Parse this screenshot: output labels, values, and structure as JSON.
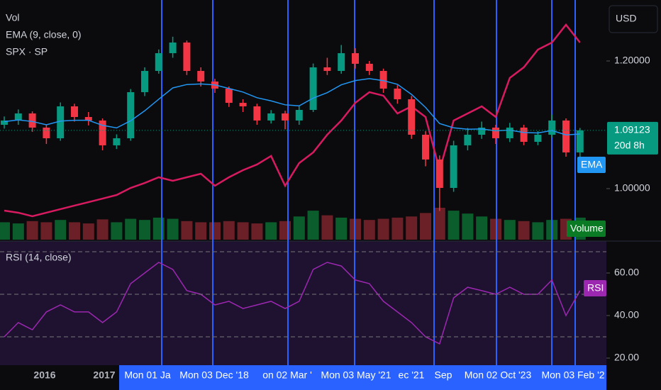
{
  "chart_data": {
    "type": "candlestick",
    "legend": [
      "Vol",
      "EMA (9, close, 0)",
      "SPX · SP"
    ],
    "currency": "USD",
    "last_price_label": "1.09123",
    "countdown": "20d 8h",
    "up_color": "#089981",
    "down_color": "#f23645",
    "ylim": [
      0.92,
      1.2933
    ],
    "yticks": [
      {
        "value": 1.2,
        "label": "1.20000"
      },
      {
        "value": 1.0,
        "label": "1.00000"
      }
    ],
    "ohlc": [
      [
        1.1,
        1.113,
        1.094,
        1.1067
      ],
      [
        1.1067,
        1.124,
        1.1,
        1.1178
      ],
      [
        1.1178,
        1.121,
        1.089,
        1.0956
      ],
      [
        1.0956,
        1.1,
        1.07,
        1.0789
      ],
      [
        1.0789,
        1.135,
        1.075,
        1.1289
      ],
      [
        1.1289,
        1.133,
        1.105,
        1.1122
      ],
      [
        1.1122,
        1.12,
        1.099,
        1.1067
      ],
      [
        1.1067,
        1.11,
        1.06,
        1.0678
      ],
      [
        1.0678,
        1.085,
        1.062,
        1.0789
      ],
      [
        1.0789,
        1.156,
        1.075,
        1.1511
      ],
      [
        1.1511,
        1.19,
        1.145,
        1.1844
      ],
      [
        1.1844,
        1.218,
        1.18,
        1.2122
      ],
      [
        1.2122,
        1.238,
        1.205,
        1.2289
      ],
      [
        1.2289,
        1.232,
        1.178,
        1.1844
      ],
      [
        1.1844,
        1.19,
        1.16,
        1.1678
      ],
      [
        1.1678,
        1.172,
        1.15,
        1.1567
      ],
      [
        1.1567,
        1.16,
        1.128,
        1.1344
      ],
      [
        1.1344,
        1.14,
        1.12,
        1.1289
      ],
      [
        1.1289,
        1.133,
        1.1,
        1.1067
      ],
      [
        1.1067,
        1.123,
        1.102,
        1.1178
      ],
      [
        1.1178,
        1.122,
        1.093,
        1.1067
      ],
      [
        1.1067,
        1.129,
        1.1,
        1.1233
      ],
      [
        1.1233,
        1.196,
        1.12,
        1.19
      ],
      [
        1.19,
        1.205,
        1.178,
        1.1844
      ],
      [
        1.1844,
        1.225,
        1.18,
        1.2122
      ],
      [
        1.2122,
        1.22,
        1.188,
        1.1956
      ],
      [
        1.1956,
        1.2,
        1.178,
        1.1844
      ],
      [
        1.1844,
        1.188,
        1.15,
        1.1567
      ],
      [
        1.1567,
        1.162,
        1.133,
        1.14
      ],
      [
        1.14,
        1.145,
        1.078,
        1.0844
      ],
      [
        1.0844,
        1.09,
        1.035,
        1.0456
      ],
      [
        1.0456,
        1.052,
        0.965,
        1.0011
      ],
      [
        1.0011,
        1.075,
        0.995,
        1.0678
      ],
      [
        1.0678,
        1.095,
        1.06,
        1.0844
      ],
      [
        1.0844,
        1.105,
        1.078,
        1.0956
      ],
      [
        1.0956,
        1.1,
        1.07,
        1.0789
      ],
      [
        1.0789,
        1.103,
        1.073,
        1.0956
      ],
      [
        1.0956,
        1.1,
        1.068,
        1.0733
      ],
      [
        1.0733,
        1.09,
        1.068,
        1.0844
      ],
      [
        1.0844,
        1.116,
        1.08,
        1.1067
      ],
      [
        1.1067,
        1.11,
        1.05,
        1.0567
      ],
      [
        1.0567,
        1.095,
        1.048,
        1.0912
      ]
    ],
    "ema": {
      "name": "EMA",
      "color": "#2196f3",
      "values": [
        1.105,
        1.1076,
        1.1052,
        1.1,
        1.1058,
        1.1071,
        1.107,
        1.0991,
        1.0951,
        1.1063,
        1.1219,
        1.14,
        1.1578,
        1.1631,
        1.164,
        1.1625,
        1.1569,
        1.1513,
        1.1424,
        1.1375,
        1.1313,
        1.1297,
        1.1418,
        1.1503,
        1.1627,
        1.1693,
        1.1723,
        1.1692,
        1.1634,
        1.1476,
        1.1272,
        1.102,
        1.0952,
        1.093,
        1.0935,
        1.0906,
        1.0916,
        1.0879,
        1.0872,
        1.0911,
        1.0842,
        1.0856
      ]
    },
    "volume": {
      "name": "Volume",
      "values": [
        30,
        28,
        32,
        30,
        34,
        30,
        28,
        35,
        30,
        36,
        34,
        38,
        36,
        32,
        30,
        30,
        32,
        30,
        28,
        30,
        32,
        40,
        50,
        42,
        38,
        36,
        34,
        36,
        38,
        40,
        46,
        55,
        50,
        45,
        40,
        36,
        34,
        32,
        30,
        34,
        36,
        38
      ]
    },
    "spx": {
      "color": "#d81b60",
      "ylim": [
        1500,
        5100
      ],
      "values": [
        1955,
        1924,
        1871,
        1924,
        1977,
        2030,
        2082,
        2135,
        2188,
        2294,
        2368,
        2453,
        2400,
        2453,
        2506,
        2326,
        2453,
        2559,
        2644,
        2771,
        2326,
        2665,
        2824,
        3089,
        3300,
        3565,
        3724,
        3671,
        3406,
        3512,
        3353,
        2559,
        3300,
        3406,
        3512,
        3353,
        3936,
        4095,
        4359,
        4465,
        4730,
        4465
      ]
    },
    "rsi": {
      "title": "RSI (14, close)",
      "name": "RSI",
      "color": "#9c27b0",
      "ylim": [
        15,
        75
      ],
      "yticks": [
        {
          "value": 20,
          "label": "20.00"
        },
        {
          "value": 40,
          "label": "40.00"
        },
        {
          "value": 60,
          "label": "60.00"
        }
      ],
      "levels": [
        70,
        50,
        30
      ],
      "values": [
        30,
        36.7,
        33.3,
        41.7,
        45,
        41.7,
        41.7,
        36.7,
        41.7,
        55,
        60,
        65,
        61.7,
        51.7,
        50,
        45,
        46.7,
        43.3,
        45,
        46.7,
        43.3,
        46.7,
        61.7,
        65,
        63.3,
        56.7,
        55,
        46.7,
        41.7,
        36.7,
        30,
        26.7,
        48.3,
        53.3,
        51.7,
        50,
        53.3,
        50,
        50,
        56.7,
        40,
        51.7
      ]
    },
    "x_labels": [
      "2016",
      "2017",
      "Mon 01 Ja",
      "Mon 03 Dec '18",
      "on 02 Mar '",
      "Mon 03 May '21",
      "ec '21",
      "Sep",
      "Mon 02 Oct '23",
      "Mon 03 Feb '2"
    ]
  }
}
